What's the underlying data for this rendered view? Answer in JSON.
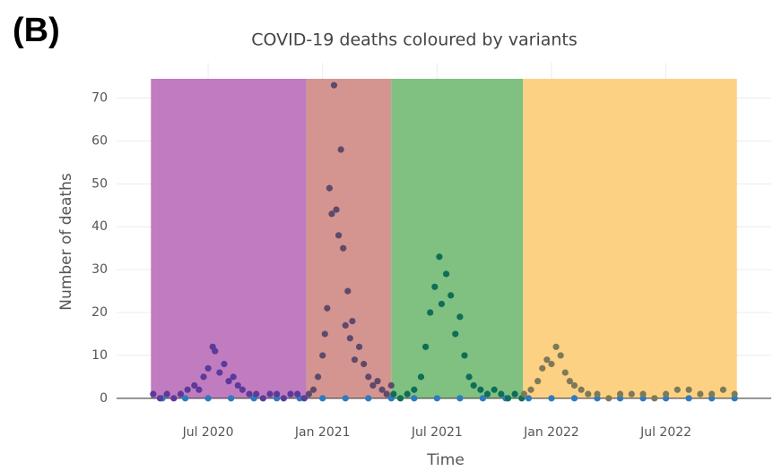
{
  "panel_label": "(B)",
  "chart_data": {
    "type": "scatter",
    "title": "COVID-19 deaths coloured by variants",
    "x_label": "Time",
    "y_label": "Number of deaths",
    "xlim": [
      2020.1,
      2022.96
    ],
    "ylim": [
      -1.5,
      74.5
    ],
    "xticks": [
      {
        "value": 2020.5,
        "label": "Jul 2020"
      },
      {
        "value": 2021.0,
        "label": "Jan 2021"
      },
      {
        "value": 2021.5,
        "label": "Jul 2021"
      },
      {
        "value": 2022.0,
        "label": "Jan 2022"
      },
      {
        "value": 2022.5,
        "label": "Jul 2022"
      }
    ],
    "yticks": [
      0,
      10,
      20,
      30,
      40,
      50,
      60,
      70
    ],
    "grid": true,
    "bands": [
      {
        "start": 2020.25,
        "end": 2020.93,
        "color": "#c07cbf"
      },
      {
        "start": 2020.93,
        "end": 2021.3,
        "color": "#d49590"
      },
      {
        "start": 2021.3,
        "end": 2021.876,
        "color": "#80c080"
      },
      {
        "start": 2021.876,
        "end": 2022.81,
        "color": "#fdd183"
      }
    ],
    "series": [
      {
        "color": "#2e7bbf",
        "x": [
          2020.3,
          2020.4,
          2020.5,
          2020.6,
          2020.7,
          2020.8,
          2020.9,
          2021.0,
          2021.1,
          2021.2,
          2021.3,
          2021.4,
          2021.5,
          2021.6,
          2021.7,
          2021.8,
          2021.9,
          2022.0,
          2022.1,
          2022.2,
          2022.3,
          2022.4,
          2022.5,
          2022.6,
          2022.7,
          2022.8
        ],
        "values": [
          0,
          0,
          0,
          0,
          0,
          0,
          0,
          0,
          0,
          0,
          0,
          0,
          0,
          0,
          0,
          0,
          0,
          0,
          0,
          0,
          0,
          0,
          0,
          0,
          0,
          0
        ]
      },
      {
        "color": "#5b3a9b",
        "x": [
          2020.26,
          2020.29,
          2020.32,
          2020.35,
          2020.38,
          2020.41,
          2020.44,
          2020.46,
          2020.48,
          2020.5,
          2020.52,
          2020.53,
          2020.55,
          2020.57,
          2020.59,
          2020.61,
          2020.63,
          2020.65,
          2020.68,
          2020.71,
          2020.74,
          2020.77,
          2020.8,
          2020.83,
          2020.86,
          2020.89,
          2020.92
        ],
        "values": [
          1,
          0,
          1,
          0,
          1,
          2,
          3,
          2,
          5,
          7,
          12,
          11,
          6,
          8,
          4,
          5,
          3,
          2,
          1,
          1,
          0,
          1,
          1,
          0,
          1,
          1,
          0
        ]
      },
      {
        "color": "#5e4a6b",
        "x": [
          2020.94,
          2020.96,
          2020.98,
          2021.0,
          2021.01,
          2021.02,
          2021.03,
          2021.04,
          2021.05,
          2021.06,
          2021.07,
          2021.08,
          2021.09,
          2021.1,
          2021.11,
          2021.12,
          2021.13,
          2021.14,
          2021.16,
          2021.18,
          2021.2,
          2021.22,
          2021.24,
          2021.26,
          2021.28,
          2021.3
        ],
        "values": [
          1,
          2,
          5,
          10,
          15,
          21,
          49,
          43,
          73,
          44,
          38,
          58,
          35,
          17,
          25,
          14,
          18,
          9,
          12,
          8,
          5,
          3,
          4,
          2,
          1,
          3
        ]
      },
      {
        "color": "#0e6e58",
        "x": [
          2021.31,
          2021.34,
          2021.37,
          2021.4,
          2021.43,
          2021.45,
          2021.47,
          2021.49,
          2021.51,
          2021.52,
          2021.54,
          2021.56,
          2021.58,
          2021.6,
          2021.62,
          2021.64,
          2021.66,
          2021.69,
          2021.72,
          2021.75,
          2021.78,
          2021.81,
          2021.84,
          2021.87
        ],
        "values": [
          1,
          0,
          1,
          2,
          5,
          12,
          20,
          26,
          33,
          22,
          29,
          24,
          15,
          19,
          10,
          5,
          3,
          2,
          1,
          2,
          1,
          0,
          1,
          0
        ]
      },
      {
        "color": "#7d7a58",
        "x": [
          2021.88,
          2021.91,
          2021.94,
          2021.96,
          2021.98,
          2022.0,
          2022.02,
          2022.04,
          2022.06,
          2022.08,
          2022.1,
          2022.13,
          2022.16,
          2022.2,
          2022.25,
          2022.3,
          2022.35,
          2022.4,
          2022.45,
          2022.5,
          2022.55,
          2022.6,
          2022.65,
          2022.7,
          2022.75,
          2022.8
        ],
        "values": [
          1,
          2,
          4,
          7,
          9,
          8,
          12,
          10,
          6,
          4,
          3,
          2,
          1,
          1,
          0,
          1,
          1,
          1,
          0,
          1,
          2,
          2,
          1,
          1,
          2,
          1
        ]
      }
    ]
  }
}
